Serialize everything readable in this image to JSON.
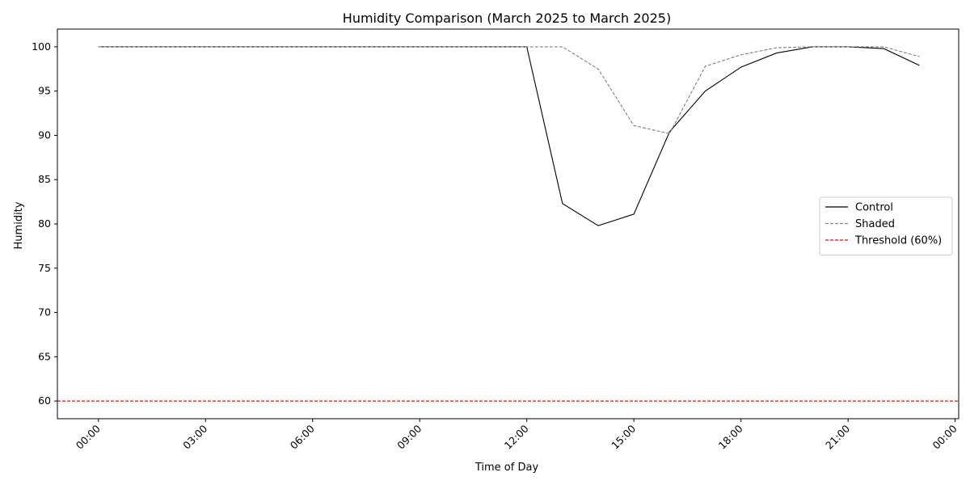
{
  "chart_data": {
    "type": "line",
    "title": "Humidity Comparison (March 2025 to March 2025)",
    "xlabel": "Time of Day",
    "ylabel": "Humidity",
    "x_unit": "hours",
    "xlim": [
      -1.15,
      24.1
    ],
    "ylim": [
      58,
      102
    ],
    "x_ticks": [
      {
        "value": 0,
        "label": "00:00"
      },
      {
        "value": 3,
        "label": "03:00"
      },
      {
        "value": 6,
        "label": "06:00"
      },
      {
        "value": 9,
        "label": "09:00"
      },
      {
        "value": 12,
        "label": "12:00"
      },
      {
        "value": 15,
        "label": "15:00"
      },
      {
        "value": 18,
        "label": "18:00"
      },
      {
        "value": 21,
        "label": "21:00"
      },
      {
        "value": 24,
        "label": "00:00"
      }
    ],
    "y_ticks": [
      60,
      65,
      70,
      75,
      80,
      85,
      90,
      95,
      100
    ],
    "x": [
      0,
      1,
      2,
      3,
      4,
      5,
      6,
      7,
      8,
      9,
      10,
      11,
      12,
      13,
      14,
      15,
      16,
      17,
      18,
      19,
      20,
      21,
      22,
      23
    ],
    "series": [
      {
        "name": "Control",
        "color": "#000000",
        "dash": "solid",
        "values": [
          100,
          100,
          100,
          100,
          100,
          100,
          100,
          100,
          100,
          100,
          100,
          100,
          100,
          82.3,
          79.8,
          81.1,
          90.4,
          95.0,
          97.7,
          99.3,
          100,
          100,
          99.8,
          97.9
        ]
      },
      {
        "name": "Shaded",
        "color": "#808080",
        "dash": "dashed",
        "values": [
          100,
          100,
          100,
          100,
          100,
          100,
          100,
          100,
          100,
          100,
          100,
          100,
          100,
          100,
          97.5,
          91.1,
          90.2,
          97.8,
          99.1,
          99.9,
          100,
          100,
          100,
          98.9
        ]
      }
    ],
    "reference_lines": [
      {
        "name": "Threshold (60%)",
        "value": 60,
        "color": "#ff0000",
        "dash": "dashed"
      }
    ],
    "legend": "center-right",
    "grid": false
  }
}
